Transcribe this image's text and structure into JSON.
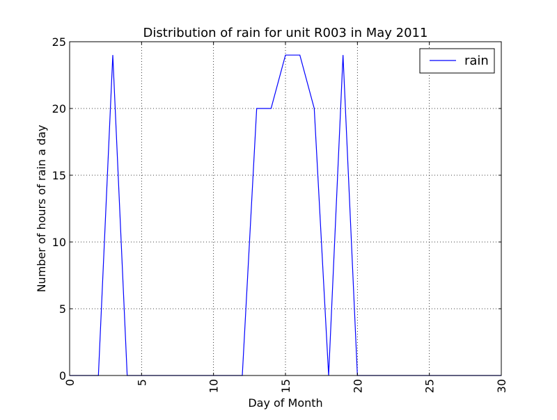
{
  "chart_data": {
    "type": "line",
    "title": "Distribution of rain for unit R003 in May 2011",
    "xlabel": "Day of Month",
    "ylabel": "Number of hours of rain a day",
    "xlim": [
      0,
      30
    ],
    "ylim": [
      0,
      25
    ],
    "xticks": [
      0,
      5,
      10,
      15,
      20,
      25,
      30
    ],
    "yticks": [
      0,
      5,
      10,
      15,
      20,
      25
    ],
    "xtick_labels": [
      "0",
      "5",
      "10",
      "15",
      "20",
      "25",
      "30"
    ],
    "ytick_labels": [
      "0",
      "5",
      "10",
      "15",
      "20",
      "25"
    ],
    "xtick_rotation": 90,
    "grid": true,
    "legend_position": "top-right",
    "series": [
      {
        "name": "rain",
        "color": "#0000ff",
        "x": [
          0,
          1,
          2,
          3,
          4,
          5,
          6,
          7,
          8,
          9,
          10,
          11,
          12,
          13,
          14,
          15,
          16,
          17,
          18,
          19,
          20,
          21,
          22,
          23,
          24,
          25,
          26,
          27,
          28,
          29,
          30
        ],
        "y": [
          0,
          0,
          0,
          24,
          0,
          0,
          0,
          0,
          0,
          0,
          0,
          0,
          0,
          20,
          20,
          24,
          24,
          20,
          0,
          24,
          0,
          0,
          0,
          0,
          0,
          0,
          0,
          0,
          0,
          0,
          0
        ]
      }
    ]
  }
}
